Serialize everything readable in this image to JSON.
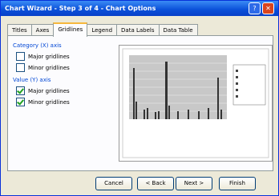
{
  "window": {
    "title": "Chart Wizard - Step 3 of 4 - Chart Options"
  },
  "tabs": [
    "Titles",
    "Axes",
    "Gridlines",
    "Legend",
    "Data Labels",
    "Data Table"
  ],
  "active_tab": 2,
  "groups": [
    {
      "label": "Category (X) axis",
      "options": [
        {
          "label": "Major gridlines",
          "checked": false
        },
        {
          "label": "Minor gridlines",
          "checked": false
        }
      ]
    },
    {
      "label": "Value (Y) axis",
      "options": [
        {
          "label": "Major gridlines",
          "checked": true
        },
        {
          "label": "Minor gridlines",
          "checked": true
        }
      ]
    }
  ],
  "buttons": [
    "Cancel",
    "< Back",
    "Next >",
    "Finish"
  ]
}
